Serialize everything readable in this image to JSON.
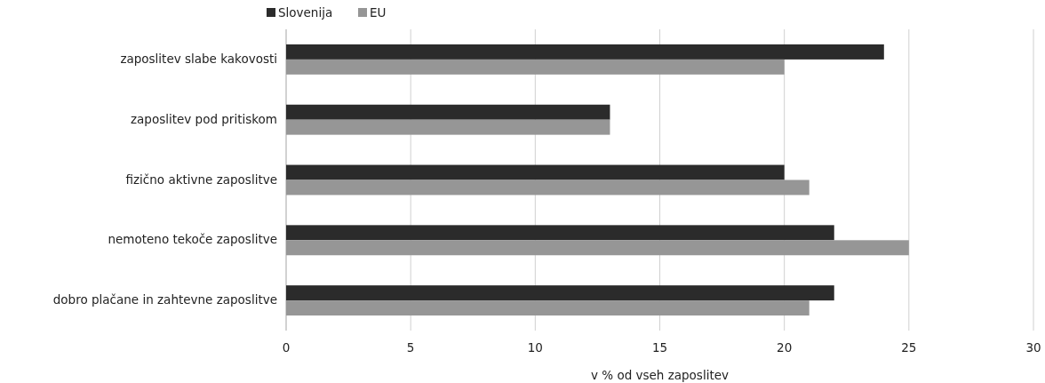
{
  "chart_data": {
    "type": "bar",
    "orientation": "horizontal",
    "xlabel": "v % od vseh zaposlitev",
    "categories": [
      "zaposlitev slabe kakovosti",
      "zaposlitev pod pritiskom",
      "fizično aktivne zaposlitve",
      "nemoteno tekoče zaposlitve",
      "dobro plačane in zahtevne zaposlitve"
    ],
    "series": [
      {
        "name": "Slovenija",
        "color": "#2b2b2b",
        "values": [
          24,
          13,
          20,
          22,
          22
        ]
      },
      {
        "name": "EU",
        "color": "#969696",
        "values": [
          20,
          13,
          21,
          25,
          21
        ]
      }
    ],
    "xlim": [
      0,
      30
    ],
    "xticks": [
      0,
      5,
      10,
      15,
      20,
      25,
      30
    ],
    "grid": "x",
    "legend": "top left"
  }
}
